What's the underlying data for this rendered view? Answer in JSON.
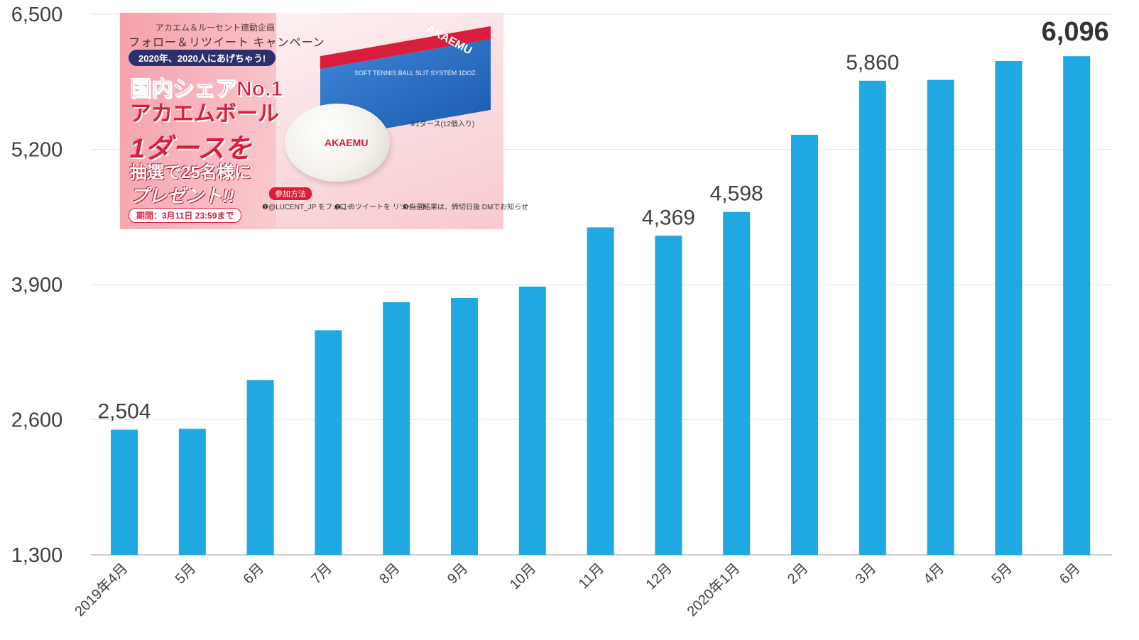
{
  "chart_data": {
    "type": "bar",
    "categories": [
      "2019年4月",
      "5月",
      "6月",
      "7月",
      "8月",
      "9月",
      "10月",
      "11月",
      "12月",
      "2020年1月",
      "2月",
      "3月",
      "4月",
      "5月",
      "6月"
    ],
    "values": [
      2504,
      2512,
      2980,
      3460,
      3730,
      3770,
      3880,
      4450,
      4369,
      4598,
      5340,
      5860,
      5868,
      6050,
      6096
    ],
    "data_labels": [
      {
        "index": 0,
        "text": "2,504"
      },
      {
        "index": 8,
        "text": "4,369"
      },
      {
        "index": 9,
        "text": "4,598"
      },
      {
        "index": 11,
        "text": "5,860"
      },
      {
        "index": 14,
        "text": "6,096",
        "emphasis": true
      }
    ],
    "ylim": [
      1300,
      6500
    ],
    "yticks": [
      "1,300",
      "2,600",
      "3,900",
      "5,200",
      "6,500"
    ],
    "ytick_values": [
      1300,
      2600,
      3900,
      5200,
      6500
    ],
    "grid": true,
    "bar_color": "#1fa8e1",
    "title": "",
    "xlabel": "",
    "ylabel": ""
  },
  "ad_banner": {
    "line1": "アカエム＆ルーセント連動企画",
    "line2": "フォロー＆リツイート キャンペーン",
    "date_pill": "2020年、2020人にあげちゃう!",
    "headline1": "国内シェアNo.1",
    "headline2": "アカエムボール",
    "headline3": "1ダースを",
    "headline4": "抽選で25名様に",
    "headline5": "プレゼント!!",
    "period": "期間：3月11日 23:59まで",
    "join_label": "参加方法",
    "step1": "❶@LUCENT_JP をフォロー",
    "step2": "❷このツイートを リツイート",
    "step3": "❸当選結果は、締切日後 DMでお知らせ",
    "note": "※1ダース(12個入り)",
    "box_brand": "AKAEMU",
    "box_text": "SOFT TENNIS BALL SLIT SYSTEM 1DOZ.",
    "ball_logo": "AKAEMU"
  }
}
